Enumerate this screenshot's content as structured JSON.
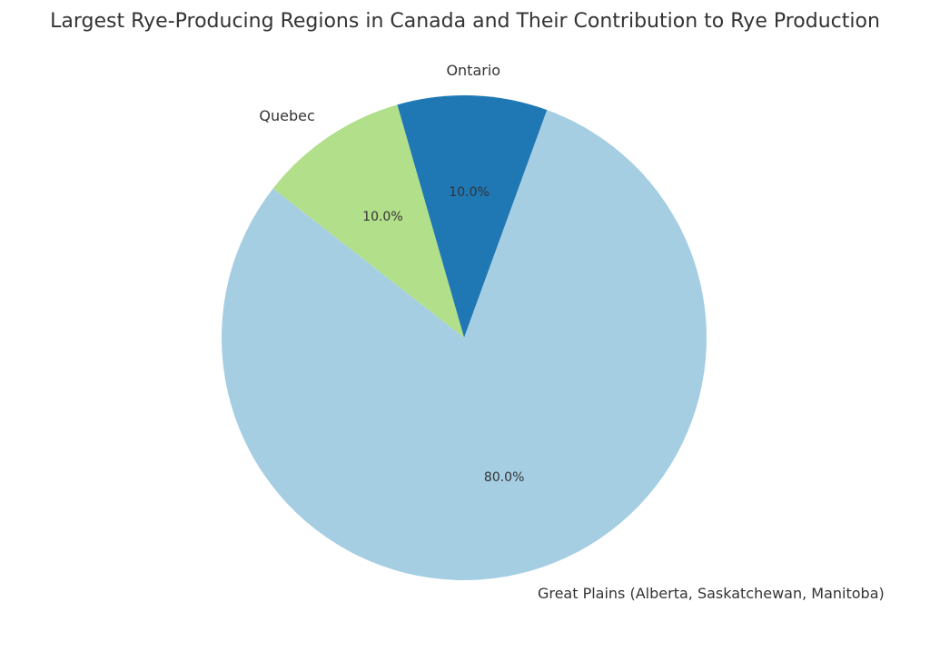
{
  "chart_data": {
    "type": "pie",
    "title": "Largest Rye-Producing Regions in Canada and Their Contribution to Rye Production",
    "start_angle_deg": 70,
    "direction": "counterclockwise",
    "slices": [
      {
        "label": "Ontario",
        "value": 10.0,
        "percent_label": "10.0%",
        "color": "#1f78b4"
      },
      {
        "label": "Quebec",
        "value": 10.0,
        "percent_label": "10.0%",
        "color": "#b2df8a"
      },
      {
        "label": "Great Plains (Alberta, Saskatchewan, Manitoba)",
        "value": 80.0,
        "percent_label": "80.0%",
        "color": "#a6cee3"
      }
    ]
  }
}
